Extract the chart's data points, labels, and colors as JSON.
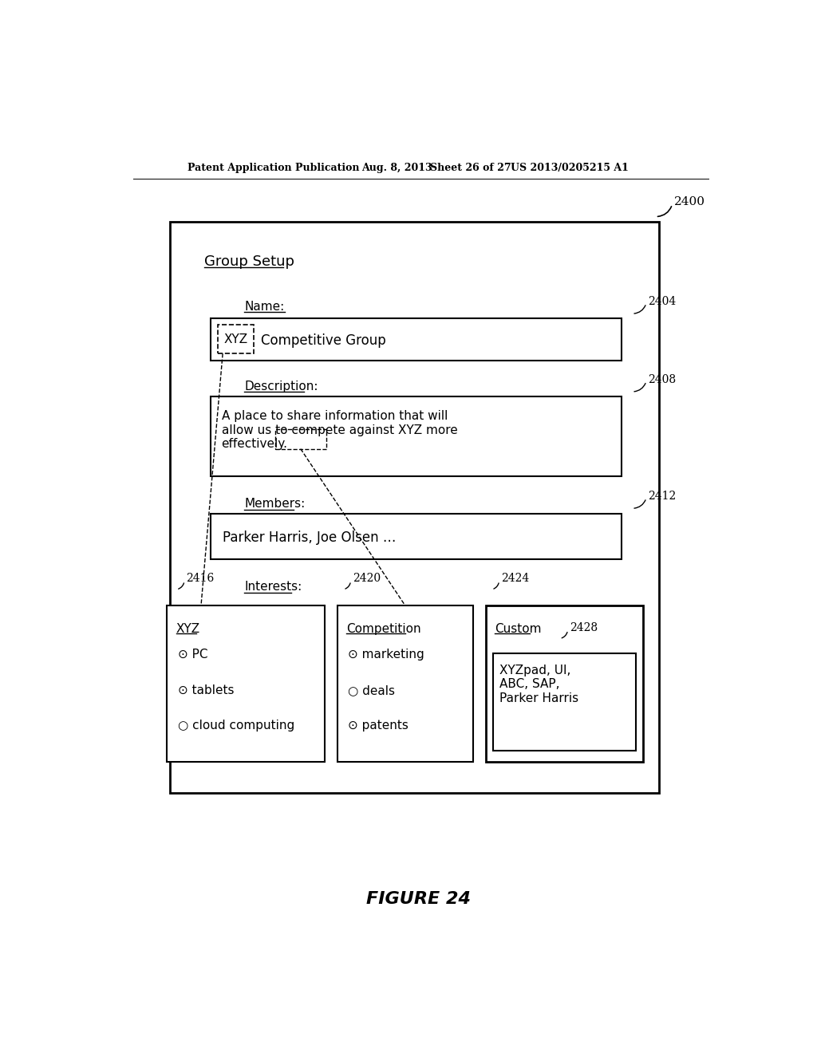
{
  "bg_color": "#ffffff",
  "header_text": "Patent Application Publication",
  "header_date": "Aug. 8, 2013",
  "header_sheet": "Sheet 26 of 27",
  "header_patent": "US 2013/0205215 A1",
  "figure_label": "FIGURE 24",
  "ref_2400": "2400",
  "ref_2404": "2404",
  "ref_2408": "2408",
  "ref_2412": "2412",
  "ref_2416": "2416",
  "ref_2420": "2420",
  "ref_2424": "2424",
  "ref_2428": "2428",
  "title_text": "Group Setup",
  "name_label": "Name:",
  "desc_label": "Description:",
  "members_label": "Members:",
  "interests_label": "Interests:",
  "name_xyz": "XYZ",
  "name_rest": "  Competitive Group",
  "desc_content": "A place to share information that will\nallow us to compete against XYZ more\neffectively.",
  "members_content": "Parker Harris, Joe Olsen …",
  "xyz_title": "XYZ",
  "xyz_items": [
    "⊙ PC",
    "⊙ tablets",
    "○ cloud computing"
  ],
  "comp_title": "Competition",
  "comp_items": [
    "⊙ marketing",
    "○ deals",
    "⊙ patents"
  ],
  "custom_title": "Custom",
  "custom_box_content": "XYZpad, UI,\nABC, SAP,\nParker Harris"
}
